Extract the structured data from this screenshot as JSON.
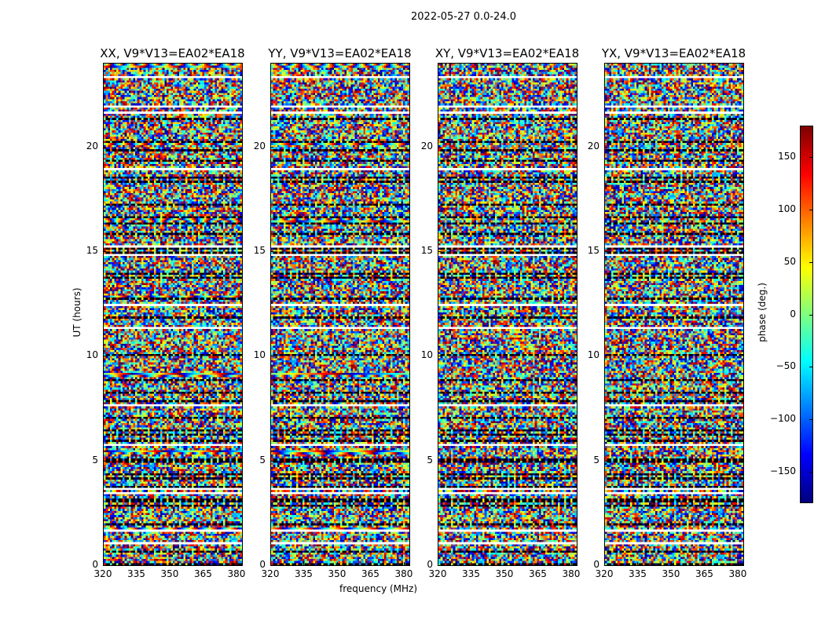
{
  "chart_data": {
    "type": "heatmap",
    "title": "2022-05-27 0.0-24.0",
    "xlabel": "frequency (MHz)",
    "ylabel": "UT (hours)",
    "xlim": [
      320,
      382.5
    ],
    "ylim": [
      0,
      24
    ],
    "xticks": [
      "320",
      "335",
      "350",
      "365",
      "380"
    ],
    "xtick_values": [
      320,
      335,
      350,
      365,
      380
    ],
    "yticks": [
      "0",
      "5",
      "10",
      "15",
      "20"
    ],
    "ytick_values": [
      0,
      5,
      10,
      15,
      20
    ],
    "panels": [
      {
        "title": "XX, V9*V13=EA02*EA18"
      },
      {
        "title": "YY, V9*V13=EA02*EA18"
      },
      {
        "title": "XY, V9*V13=EA02*EA18"
      },
      {
        "title": "YX, V9*V13=EA02*EA18"
      }
    ],
    "flagged_ut_hours": [
      23.3,
      21.9,
      21.6,
      18.9,
      15.2,
      14.8,
      12.4,
      11.3,
      7.6,
      5.7,
      3.6,
      3.4,
      1.6,
      1.0
    ],
    "colorbar": {
      "label": "phase (deg.)",
      "range": [
        -180,
        180
      ],
      "ticks": [
        "−150",
        "−100",
        "−50",
        "0",
        "50",
        "100",
        "150"
      ],
      "tick_values": [
        -150,
        -100,
        -50,
        0,
        50,
        100,
        150
      ],
      "colormap": "jet"
    }
  }
}
